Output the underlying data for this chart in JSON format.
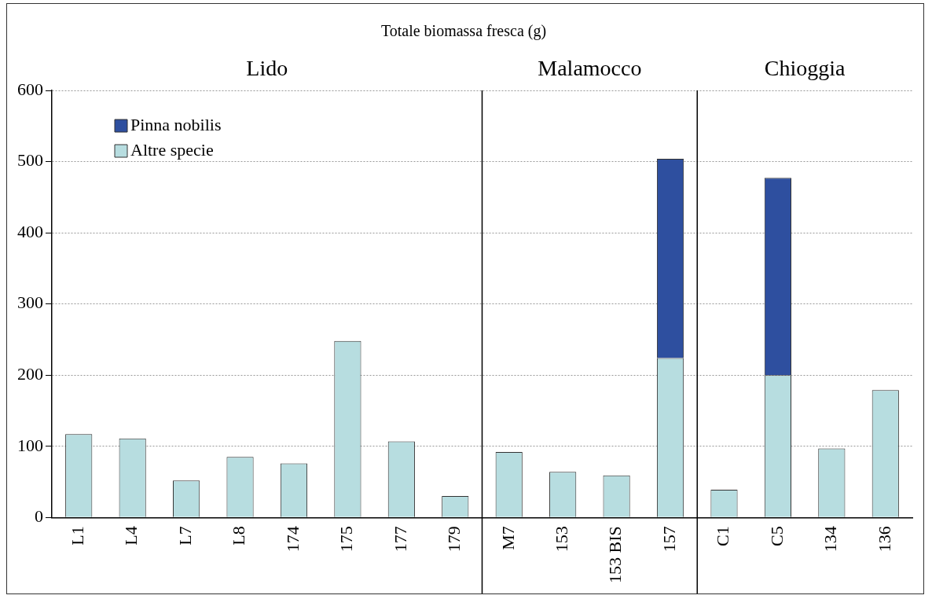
{
  "chart_data": {
    "type": "bar",
    "title": "Totale biomassa fresca (g)",
    "stacked": true,
    "categories": [
      "L1",
      "L4",
      "L7",
      "L8",
      "174",
      "175",
      "177",
      "179",
      "M7",
      "153",
      "153 BIS",
      "157",
      "C1",
      "C5",
      "134",
      "136"
    ],
    "series": [
      {
        "name": "Altre specie",
        "color": "#b7dde0",
        "values": [
          117,
          111,
          52,
          85,
          76,
          248,
          107,
          30,
          92,
          64,
          59,
          224,
          39,
          200,
          97,
          179
        ]
      },
      {
        "name": "Pinna nobilis",
        "color": "#2e4f9f",
        "values": [
          null,
          null,
          null,
          null,
          null,
          null,
          null,
          null,
          null,
          null,
          null,
          280,
          null,
          277,
          null,
          null
        ]
      }
    ],
    "ylim": [
      0,
      600
    ],
    "yticks": [
      0,
      100,
      200,
      300,
      400,
      500,
      600
    ],
    "grid": "y",
    "legend": "top left",
    "annotations": [
      "Lido",
      "Malamocco",
      "Chioggia"
    ]
  }
}
